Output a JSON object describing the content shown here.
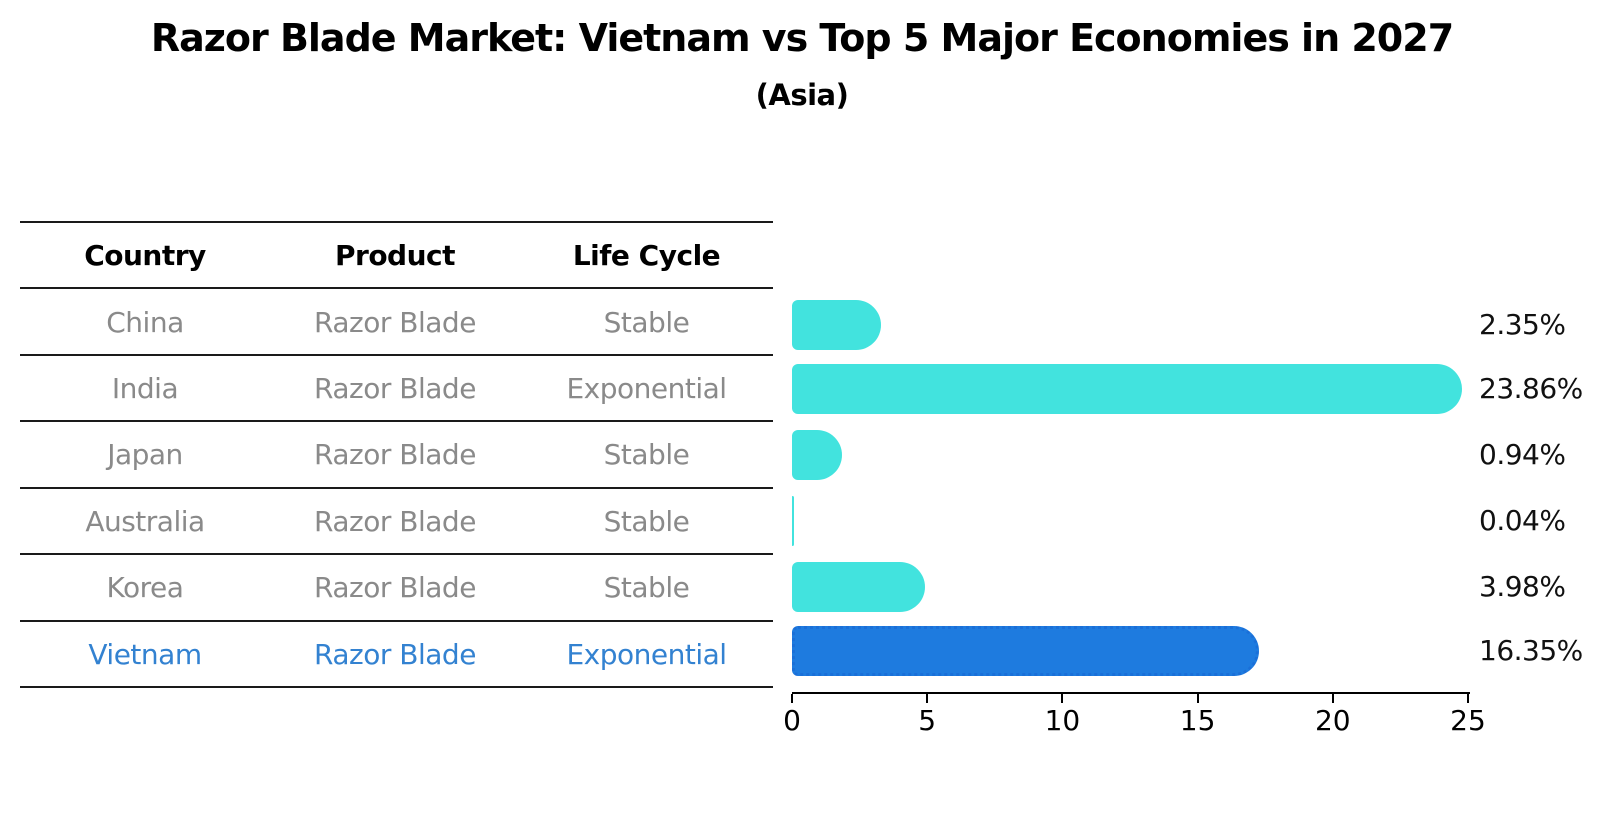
{
  "title": "Razor Blade Market: Vietnam vs Top 5 Major Economies in 2027",
  "subtitle": "(Asia)",
  "table": {
    "headers": [
      "Country",
      "Product",
      "Life Cycle"
    ],
    "rows": [
      {
        "country": "China",
        "product": "Razor Blade",
        "life_cycle": "Stable",
        "highlighted": false
      },
      {
        "country": "India",
        "product": "Razor Blade",
        "life_cycle": "Exponential",
        "highlighted": false
      },
      {
        "country": "Japan",
        "product": "Razor Blade",
        "life_cycle": "Stable",
        "highlighted": false
      },
      {
        "country": "Australia",
        "product": "Razor Blade",
        "life_cycle": "Stable",
        "highlighted": false
      },
      {
        "country": "Korea",
        "product": "Razor Blade",
        "life_cycle": "Stable",
        "highlighted": false
      },
      {
        "country": "Vietnam",
        "product": "Razor Blade",
        "life_cycle": "Exponential",
        "highlighted": true
      }
    ]
  },
  "chart_data": {
    "type": "bar",
    "orientation": "horizontal",
    "categories": [
      "China",
      "India",
      "Japan",
      "Australia",
      "Korea",
      "Vietnam"
    ],
    "values": [
      2.35,
      23.86,
      0.94,
      0.04,
      3.98,
      16.35
    ],
    "value_labels": [
      "2.35%",
      "23.86%",
      "0.94%",
      "0.04%",
      "3.98%",
      "16.35%"
    ],
    "x_ticks": [
      0,
      5,
      10,
      15,
      20,
      25
    ],
    "xlim": [
      0,
      25
    ],
    "grid": false,
    "legend": "none",
    "bar_color": "#42e3de",
    "highlight_color": "#1e7bdf",
    "highlight_border_color": "#1a6fd8",
    "highlight_index": 5
  },
  "colors": {
    "highlight_text": "#3382d1",
    "muted_text": "#8a8a8a",
    "text": "#000000"
  }
}
